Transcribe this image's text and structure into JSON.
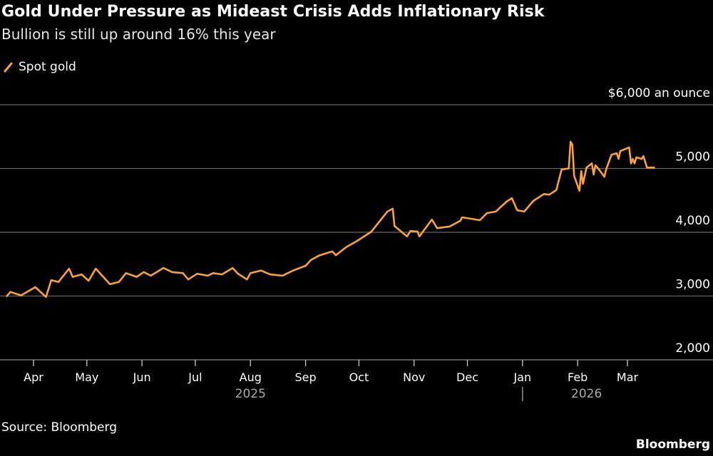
{
  "chart_data": {
    "type": "line",
    "title": "Gold Under Pressure as Mideast Crisis Adds Inflationary Risk",
    "subtitle": "Bullion is still up around 16% this year",
    "ylabel": "$6,000 an ounce",
    "ylim": [
      2000,
      6000
    ],
    "yticks": [
      {
        "value": 6000,
        "label": "$6,000 an ounce"
      },
      {
        "value": 5000,
        "label": "5,000"
      },
      {
        "value": 4000,
        "label": "4,000"
      },
      {
        "value": 3000,
        "label": "3,000"
      },
      {
        "value": 2000,
        "label": "2,000"
      }
    ],
    "xticks": [
      {
        "date": "2025-04-01",
        "label": "Apr"
      },
      {
        "date": "2025-05-01",
        "label": "May"
      },
      {
        "date": "2025-06-01",
        "label": "Jun"
      },
      {
        "date": "2025-07-01",
        "label": "Jul"
      },
      {
        "date": "2025-08-01",
        "label": "Aug"
      },
      {
        "date": "2025-09-01",
        "label": "Sep"
      },
      {
        "date": "2025-10-01",
        "label": "Oct"
      },
      {
        "date": "2025-11-01",
        "label": "Nov"
      },
      {
        "date": "2025-12-01",
        "label": "Dec"
      },
      {
        "date": "2026-01-01",
        "label": "Jan"
      },
      {
        "date": "2026-02-01",
        "label": "Feb"
      },
      {
        "date": "2026-03-01",
        "label": "Mar"
      }
    ],
    "years": [
      {
        "date": "2025-08-01",
        "label": "2025"
      },
      {
        "date": "2026-02-06",
        "label": "2026"
      }
    ],
    "year_divider": "2026-01-01",
    "grid": true,
    "legend": "top-left",
    "series": [
      {
        "name": "Spot gold",
        "color": "#f9a23b",
        "points": [
          [
            "2025-03-17",
            3000
          ],
          [
            "2025-03-19",
            3065
          ],
          [
            "2025-03-25",
            3010
          ],
          [
            "2025-04-02",
            3140
          ],
          [
            "2025-04-08",
            2985
          ],
          [
            "2025-04-11",
            3250
          ],
          [
            "2025-04-15",
            3220
          ],
          [
            "2025-04-21",
            3430
          ],
          [
            "2025-04-23",
            3300
          ],
          [
            "2025-04-28",
            3340
          ],
          [
            "2025-05-02",
            3240
          ],
          [
            "2025-05-06",
            3430
          ],
          [
            "2025-05-14",
            3185
          ],
          [
            "2025-05-19",
            3220
          ],
          [
            "2025-05-23",
            3360
          ],
          [
            "2025-05-29",
            3300
          ],
          [
            "2025-06-02",
            3375
          ],
          [
            "2025-06-06",
            3320
          ],
          [
            "2025-06-13",
            3440
          ],
          [
            "2025-06-18",
            3375
          ],
          [
            "2025-06-24",
            3360
          ],
          [
            "2025-06-27",
            3260
          ],
          [
            "2025-07-02",
            3350
          ],
          [
            "2025-07-08",
            3320
          ],
          [
            "2025-07-11",
            3360
          ],
          [
            "2025-07-16",
            3340
          ],
          [
            "2025-07-22",
            3440
          ],
          [
            "2025-07-25",
            3350
          ],
          [
            "2025-07-30",
            3260
          ],
          [
            "2025-08-01",
            3360
          ],
          [
            "2025-08-07",
            3400
          ],
          [
            "2025-08-12",
            3340
          ],
          [
            "2025-08-19",
            3320
          ],
          [
            "2025-08-25",
            3400
          ],
          [
            "2025-09-01",
            3475
          ],
          [
            "2025-09-04",
            3565
          ],
          [
            "2025-09-09",
            3640
          ],
          [
            "2025-09-16",
            3700
          ],
          [
            "2025-09-18",
            3640
          ],
          [
            "2025-09-24",
            3770
          ],
          [
            "2025-09-30",
            3865
          ],
          [
            "2025-10-08",
            4010
          ],
          [
            "2025-10-15",
            4255
          ],
          [
            "2025-10-17",
            4325
          ],
          [
            "2025-10-20",
            4370
          ],
          [
            "2025-10-21",
            4100
          ],
          [
            "2025-10-28",
            3935
          ],
          [
            "2025-10-30",
            4020
          ],
          [
            "2025-11-03",
            4010
          ],
          [
            "2025-11-04",
            3935
          ],
          [
            "2025-11-11",
            4200
          ],
          [
            "2025-11-14",
            4065
          ],
          [
            "2025-11-21",
            4090
          ],
          [
            "2025-11-27",
            4180
          ],
          [
            "2025-11-28",
            4235
          ],
          [
            "2025-12-08",
            4190
          ],
          [
            "2025-12-12",
            4300
          ],
          [
            "2025-12-17",
            4325
          ],
          [
            "2025-12-23",
            4480
          ],
          [
            "2025-12-26",
            4535
          ],
          [
            "2025-12-29",
            4345
          ],
          [
            "2026-01-02",
            4325
          ],
          [
            "2026-01-07",
            4490
          ],
          [
            "2026-01-13",
            4600
          ],
          [
            "2026-01-16",
            4590
          ],
          [
            "2026-01-20",
            4660
          ],
          [
            "2026-01-23",
            4985
          ],
          [
            "2026-01-27",
            5000
          ],
          [
            "2026-01-28",
            5420
          ],
          [
            "2026-01-29",
            5375
          ],
          [
            "2026-01-30",
            4885
          ],
          [
            "2026-02-02",
            4650
          ],
          [
            "2026-02-03",
            4960
          ],
          [
            "2026-02-04",
            4760
          ],
          [
            "2026-02-06",
            5015
          ],
          [
            "2026-02-09",
            5080
          ],
          [
            "2026-02-10",
            4905
          ],
          [
            "2026-02-11",
            5050
          ],
          [
            "2026-02-13",
            4985
          ],
          [
            "2026-02-16",
            4870
          ],
          [
            "2026-02-17",
            4985
          ],
          [
            "2026-02-20",
            5215
          ],
          [
            "2026-02-23",
            5240
          ],
          [
            "2026-02-24",
            5150
          ],
          [
            "2026-02-25",
            5275
          ],
          [
            "2026-03-02",
            5330
          ],
          [
            "2026-03-03",
            5080
          ],
          [
            "2026-03-04",
            5150
          ],
          [
            "2026-03-05",
            5080
          ],
          [
            "2026-03-06",
            5175
          ],
          [
            "2026-03-09",
            5150
          ],
          [
            "2026-03-10",
            5195
          ],
          [
            "2026-03-12",
            5015
          ],
          [
            "2026-03-16",
            5015
          ]
        ]
      }
    ]
  },
  "header": {
    "title": "Gold Under Pressure as Mideast Crisis Adds Inflationary Risk",
    "subtitle": "Bullion is still up around 16% this year"
  },
  "legend": {
    "label": "Spot gold"
  },
  "footer": {
    "source": "Source: Bloomberg",
    "brand": "Bloomberg"
  }
}
